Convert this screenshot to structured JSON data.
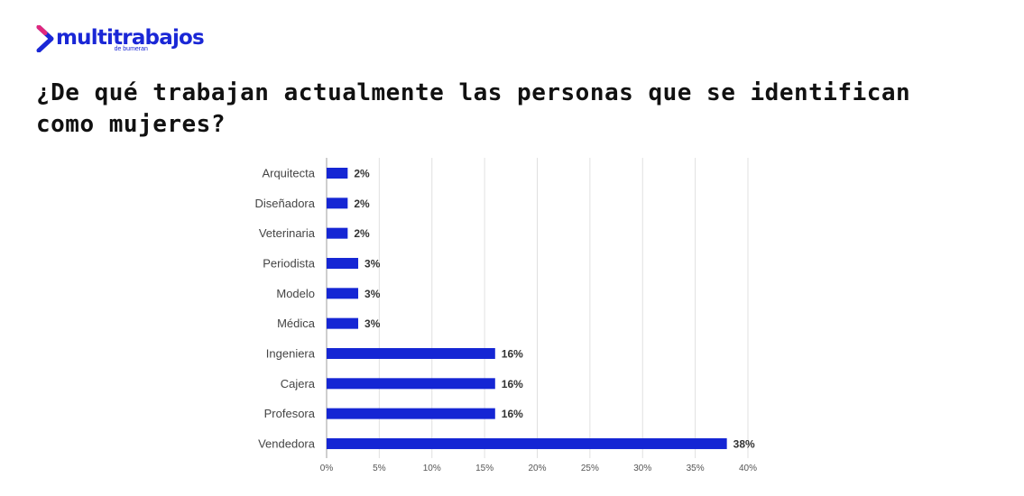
{
  "brand": {
    "name": "multitrabajos",
    "sub": "de bumeran",
    "color": "#1a27d6",
    "mark_icon": "chevron-right-icon"
  },
  "heading": {
    "title": "¿De qué trabajan actualmente las personas que se identifican como mujeres?"
  },
  "chart_data": {
    "type": "bar",
    "orientation": "horizontal",
    "title": "",
    "xlabel": "",
    "ylabel": "",
    "categories": [
      "Arquitecta",
      "Diseñadora",
      "Veterinaria",
      "Periodista",
      "Modelo",
      "Médica",
      "Ingeniera",
      "Cajera",
      "Profesora",
      "Vendedora"
    ],
    "values": [
      2,
      2,
      2,
      3,
      3,
      3,
      16,
      16,
      16,
      38
    ],
    "value_labels": [
      "2%",
      "2%",
      "2%",
      "3%",
      "3%",
      "3%",
      "16%",
      "16%",
      "16%",
      "38%"
    ],
    "xlim": [
      0,
      40
    ],
    "xticks": [
      0,
      5,
      10,
      15,
      20,
      25,
      30,
      35,
      40
    ],
    "xtick_labels": [
      "0%",
      "5%",
      "10%",
      "15%",
      "20%",
      "25%",
      "30%",
      "35%",
      "40%"
    ],
    "grid": true,
    "legend": "none",
    "bar_color": "#1526d4"
  }
}
